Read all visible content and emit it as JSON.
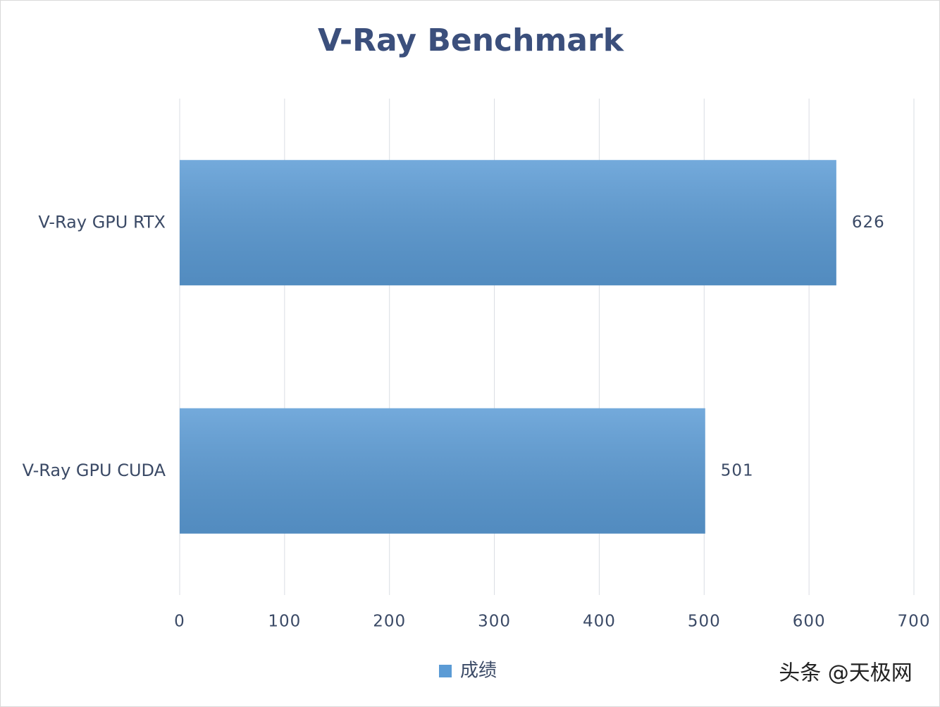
{
  "chart_data": {
    "type": "bar",
    "orientation": "horizontal",
    "title": "V-Ray Benchmark",
    "categories": [
      "V-Ray GPU RTX",
      "V-Ray GPU CUDA"
    ],
    "series": [
      {
        "name": "成绩",
        "color": "#5b9bd5",
        "values": [
          626,
          501
        ]
      }
    ],
    "xlim": [
      0,
      700
    ],
    "xticks": [
      0,
      100,
      200,
      300,
      400,
      500,
      600,
      700
    ],
    "grid": true,
    "legend": "bottom",
    "data_labels": true
  },
  "watermark": "头条 @天极网"
}
